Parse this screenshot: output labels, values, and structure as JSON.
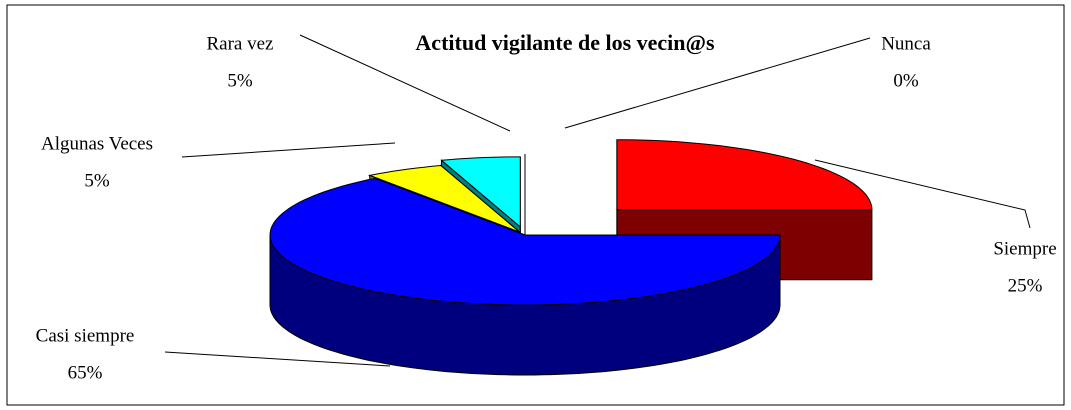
{
  "chart_data": {
    "type": "pie3d",
    "title": "Actitud vigilante de los vecin@s",
    "categories": [
      "Siempre",
      "Casi siempre",
      "Algunas Veces",
      "Rara vez",
      "Nunca"
    ],
    "values": [
      25,
      65,
      5,
      5,
      0
    ],
    "value_labels": [
      "25%",
      "65%",
      "5%",
      "5%",
      "0%"
    ],
    "colors": [
      "#ff0000",
      "#0000ff",
      "#ffff00",
      "#00ffff",
      "#ffffff"
    ]
  }
}
